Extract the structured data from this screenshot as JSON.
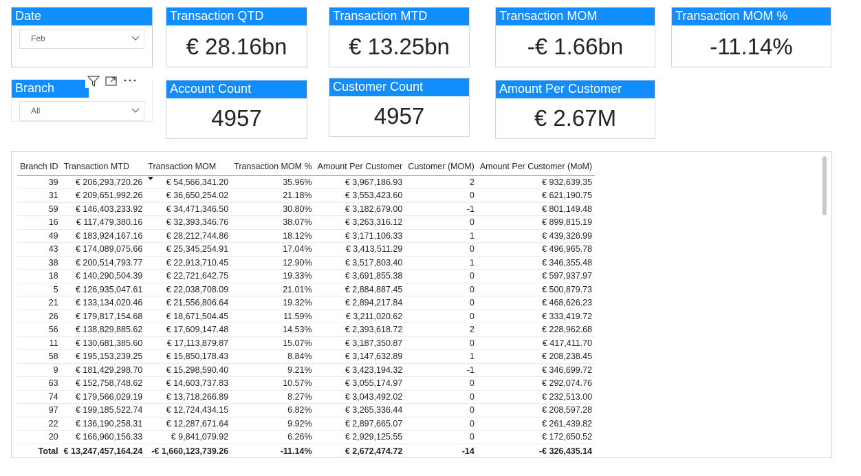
{
  "slicers": {
    "date": {
      "title": "Date",
      "value": "Feb"
    },
    "branch": {
      "title": "Branch",
      "value": "All"
    }
  },
  "cards": {
    "qtd": {
      "title": "Transaction QTD",
      "value": "€ 28.16bn"
    },
    "mtd": {
      "title": "Transaction MTD",
      "value": "€ 13.25bn"
    },
    "mom": {
      "title": "Transaction MOM",
      "value": "-€ 1.66bn"
    },
    "mom_pct": {
      "title": "Transaction MOM %",
      "value": "-11.14%"
    },
    "account_count": {
      "title": "Account Count",
      "value": "4957"
    },
    "customer_count": {
      "title": "Customer Count",
      "value": "4957"
    },
    "amount_per_customer": {
      "title": "Amount Per Customer",
      "value": "€ 2.67M"
    }
  },
  "visual_header_icons": [
    "filter-icon",
    "focus-mode-icon",
    "more-options-icon"
  ],
  "table": {
    "columns": [
      "Branch ID",
      "Transaction MTD",
      "Transaction MOM",
      "Transaction MOM %",
      "Amount Per Customer",
      "Customer (MOM)",
      "Amount Per Customer (MoM)"
    ],
    "sorted_column": "Transaction MOM",
    "rows": [
      [
        "39",
        "€ 206,293,720.26",
        "€ 54,566,341.20",
        "35.96%",
        "€ 3,967,186.93",
        "2",
        "€ 932,639.35"
      ],
      [
        "31",
        "€ 209,651,992.26",
        "€ 36,650,254.02",
        "21.18%",
        "€ 3,553,423.60",
        "0",
        "€ 621,190.75"
      ],
      [
        "59",
        "€ 146,403,233.92",
        "€ 34,471,346.50",
        "30.80%",
        "€ 3,182,679.00",
        "-1",
        "€ 801,149.48"
      ],
      [
        "16",
        "€ 117,479,380.16",
        "€ 32,393,346.76",
        "38.07%",
        "€ 3,263,316.12",
        "0",
        "€ 899,815.19"
      ],
      [
        "49",
        "€ 183,924,167.16",
        "€ 28,212,744.86",
        "18.12%",
        "€ 3,171,106.33",
        "1",
        "€ 439,326.99"
      ],
      [
        "43",
        "€ 174,089,075.66",
        "€ 25,345,254.91",
        "17.04%",
        "€ 3,413,511.29",
        "0",
        "€ 496,965.78"
      ],
      [
        "38",
        "€ 200,514,793.77",
        "€ 22,913,710.45",
        "12.90%",
        "€ 3,517,803.40",
        "1",
        "€ 346,355.48"
      ],
      [
        "18",
        "€ 140,290,504.39",
        "€ 22,721,642.75",
        "19.33%",
        "€ 3,691,855.38",
        "0",
        "€ 597,937.97"
      ],
      [
        "5",
        "€ 126,935,047.61",
        "€ 22,038,708.09",
        "21.01%",
        "€ 2,884,887.45",
        "0",
        "€ 500,879.73"
      ],
      [
        "21",
        "€ 133,134,020.46",
        "€ 21,556,806.64",
        "19.32%",
        "€ 2,894,217.84",
        "0",
        "€ 468,626.23"
      ],
      [
        "26",
        "€ 179,817,154.68",
        "€ 18,671,504.45",
        "11.59%",
        "€ 3,211,020.62",
        "0",
        "€ 333,419.72"
      ],
      [
        "56",
        "€ 138,829,885.62",
        "€ 17,609,147.48",
        "14.53%",
        "€ 2,393,618.72",
        "2",
        "€ 228,962.68"
      ],
      [
        "11",
        "€ 130,681,385.60",
        "€ 17,113,879.87",
        "15.07%",
        "€ 3,187,350.87",
        "0",
        "€ 417,411.70"
      ],
      [
        "58",
        "€ 195,153,239.25",
        "€ 15,850,178.43",
        "8.84%",
        "€ 3,147,632.89",
        "1",
        "€ 208,238.45"
      ],
      [
        "9",
        "€ 181,429,298.70",
        "€ 15,298,590.40",
        "9.21%",
        "€ 3,423,194.32",
        "-1",
        "€ 346,699.72"
      ],
      [
        "63",
        "€ 152,758,748.62",
        "€ 14,603,737.83",
        "10.57%",
        "€ 3,055,174.97",
        "0",
        "€ 292,074.76"
      ],
      [
        "74",
        "€ 179,566,029.19",
        "€ 13,718,266.89",
        "8.27%",
        "€ 3,043,492.02",
        "0",
        "€ 232,513.00"
      ],
      [
        "97",
        "€ 199,185,522.74",
        "€ 12,724,434.15",
        "6.82%",
        "€ 3,265,336.44",
        "0",
        "€ 208,597.28"
      ],
      [
        "22",
        "€ 136,190,258.31",
        "€ 12,287,671.64",
        "9.92%",
        "€ 2,897,665.07",
        "0",
        "€ 261,439.82"
      ],
      [
        "20",
        "€ 166,960,156.33",
        "€ 9,841,079.92",
        "6.26%",
        "€ 2,929,125.55",
        "0",
        "€ 172,650.52"
      ]
    ],
    "total": [
      "Total",
      "€ 13,247,457,164.24",
      "-€ 1,660,123,739.26",
      "-11.14%",
      "€ 2,672,474.72",
      "-14",
      "-€ 326,435.14"
    ]
  },
  "colors": {
    "header_blue": "#118dff",
    "border": "#d6d6d6",
    "text": "#252423"
  }
}
